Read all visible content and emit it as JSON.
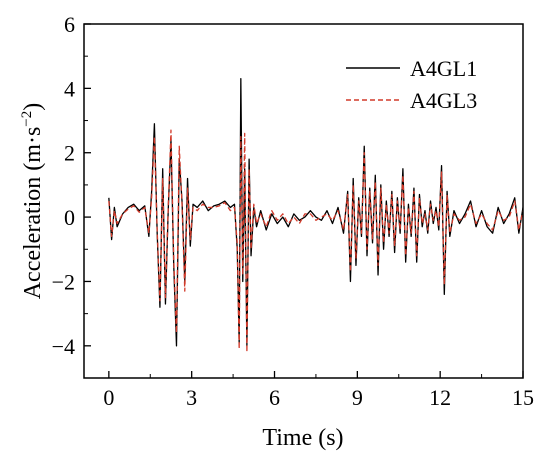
{
  "chart_data": {
    "type": "line",
    "xlabel": "Time (s)",
    "ylabel": "Acceleration (m·s",
    "ylabel_unit_exponent": "−2",
    "ylabel_close": ")",
    "xlim": [
      -0.9,
      15
    ],
    "ylim": [
      -5,
      6
    ],
    "x_ticks": [
      0,
      3,
      6,
      9,
      12,
      15
    ],
    "x_tick_labels": [
      "0",
      "3",
      "6",
      "9",
      "12",
      "15"
    ],
    "y_ticks": [
      -4,
      -2,
      0,
      2,
      4,
      6
    ],
    "y_tick_labels": [
      "−4",
      "−2",
      "0",
      "2",
      "4",
      "6"
    ],
    "grid": false,
    "legend_position": "top-right",
    "series": [
      {
        "name": "A4GL1",
        "color": "#000000",
        "dash": "solid",
        "x": [
          0.0,
          0.1,
          0.2,
          0.3,
          0.5,
          0.7,
          0.9,
          1.1,
          1.3,
          1.45,
          1.55,
          1.65,
          1.75,
          1.85,
          1.95,
          2.05,
          2.15,
          2.25,
          2.35,
          2.45,
          2.55,
          2.65,
          2.75,
          2.85,
          2.95,
          3.05,
          3.2,
          3.4,
          3.6,
          3.8,
          4.0,
          4.2,
          4.4,
          4.55,
          4.65,
          4.72,
          4.78,
          4.85,
          4.92,
          5.0,
          5.08,
          5.15,
          5.25,
          5.35,
          5.5,
          5.7,
          5.9,
          6.1,
          6.3,
          6.5,
          6.7,
          6.9,
          7.1,
          7.3,
          7.5,
          7.7,
          7.9,
          8.1,
          8.3,
          8.5,
          8.65,
          8.75,
          8.85,
          8.95,
          9.05,
          9.15,
          9.25,
          9.35,
          9.45,
          9.55,
          9.65,
          9.75,
          9.85,
          9.95,
          10.05,
          10.15,
          10.25,
          10.35,
          10.45,
          10.55,
          10.65,
          10.75,
          10.85,
          10.95,
          11.05,
          11.15,
          11.25,
          11.35,
          11.45,
          11.55,
          11.65,
          11.75,
          11.85,
          11.95,
          12.05,
          12.15,
          12.25,
          12.35,
          12.5,
          12.7,
          12.9,
          13.1,
          13.3,
          13.5,
          13.7,
          13.9,
          14.1,
          14.3,
          14.5,
          14.7,
          14.85,
          15.0
        ],
        "y": [
          0.6,
          -0.7,
          0.3,
          -0.3,
          0.1,
          0.3,
          0.4,
          0.2,
          0.35,
          -0.6,
          0.8,
          2.9,
          -0.5,
          -2.8,
          1.5,
          -2.7,
          0.2,
          2.4,
          -1.5,
          -4.0,
          1.8,
          0.5,
          -2.0,
          1.2,
          -0.9,
          0.4,
          0.3,
          0.5,
          0.2,
          0.35,
          0.4,
          0.5,
          0.3,
          0.4,
          -1.0,
          -3.9,
          4.3,
          -2.0,
          1.5,
          -4.0,
          1.8,
          -1.2,
          0.3,
          -0.3,
          0.2,
          -0.4,
          0.1,
          -0.2,
          0.0,
          -0.3,
          0.1,
          -0.1,
          0.0,
          0.2,
          0.0,
          -0.1,
          0.2,
          -0.2,
          0.3,
          -0.5,
          0.8,
          -2.0,
          1.2,
          -1.5,
          0.6,
          -0.6,
          2.2,
          -1.2,
          0.9,
          -0.8,
          1.3,
          -1.8,
          1.0,
          -1.0,
          0.5,
          -0.6,
          0.8,
          -1.1,
          0.6,
          -0.5,
          1.5,
          -1.4,
          0.4,
          -0.6,
          0.9,
          -1.4,
          0.7,
          -0.3,
          0.2,
          -0.5,
          0.5,
          -0.2,
          0.3,
          -0.4,
          1.6,
          -2.4,
          0.8,
          -0.6,
          0.2,
          -0.2,
          0.1,
          0.5,
          -0.3,
          0.2,
          -0.3,
          -0.5,
          0.3,
          -0.2,
          0.1,
          0.6,
          -0.5,
          0.3
        ],
        "linestyle": "solid"
      },
      {
        "name": "A4GL3",
        "color": "#d23a2a",
        "dash": "dashed",
        "x": [
          0.0,
          0.1,
          0.2,
          0.3,
          0.5,
          0.7,
          0.9,
          1.1,
          1.3,
          1.45,
          1.55,
          1.65,
          1.75,
          1.85,
          1.95,
          2.05,
          2.15,
          2.25,
          2.35,
          2.45,
          2.55,
          2.65,
          2.75,
          2.85,
          2.95,
          3.05,
          3.2,
          3.4,
          3.6,
          3.8,
          4.0,
          4.2,
          4.4,
          4.55,
          4.65,
          4.72,
          4.78,
          4.85,
          4.92,
          5.0,
          5.08,
          5.15,
          5.25,
          5.35,
          5.5,
          5.7,
          5.9,
          6.1,
          6.3,
          6.5,
          6.7,
          6.9,
          7.1,
          7.3,
          7.5,
          7.7,
          7.9,
          8.1,
          8.3,
          8.5,
          8.65,
          8.75,
          8.85,
          8.95,
          9.05,
          9.15,
          9.25,
          9.35,
          9.45,
          9.55,
          9.65,
          9.75,
          9.85,
          9.95,
          10.05,
          10.15,
          10.25,
          10.35,
          10.45,
          10.55,
          10.65,
          10.75,
          10.85,
          10.95,
          11.05,
          11.15,
          11.25,
          11.35,
          11.45,
          11.55,
          11.65,
          11.75,
          11.85,
          11.95,
          12.05,
          12.15,
          12.25,
          12.35,
          12.5,
          12.7,
          12.9,
          13.1,
          13.3,
          13.5,
          13.7,
          13.9,
          14.1,
          14.3,
          14.5,
          14.7,
          14.85,
          15.0
        ],
        "y": [
          0.5,
          -0.6,
          0.2,
          -0.2,
          0.1,
          0.25,
          0.35,
          0.15,
          0.3,
          -0.5,
          0.6,
          2.5,
          -0.4,
          -2.6,
          1.2,
          -2.5,
          0.3,
          2.7,
          -1.3,
          -3.6,
          2.2,
          0.4,
          -2.3,
          0.9,
          -0.7,
          0.3,
          0.2,
          0.4,
          0.3,
          0.3,
          0.35,
          0.45,
          0.2,
          0.3,
          -0.8,
          -4.1,
          2.5,
          -1.8,
          2.6,
          -4.2,
          1.5,
          -1.0,
          0.4,
          -0.2,
          0.1,
          -0.3,
          0.2,
          -0.1,
          0.1,
          -0.2,
          0.0,
          -0.2,
          0.1,
          0.1,
          -0.1,
          0.0,
          0.1,
          -0.1,
          0.2,
          -0.4,
          0.7,
          -1.7,
          1.0,
          -1.3,
          0.5,
          -0.5,
          2.0,
          -1.0,
          0.8,
          -0.7,
          1.1,
          -1.5,
          0.9,
          -0.8,
          0.4,
          -0.5,
          0.7,
          -0.9,
          0.5,
          -0.4,
          1.3,
          -1.2,
          0.3,
          -0.5,
          0.8,
          -1.2,
          0.6,
          -0.2,
          0.1,
          -0.4,
          0.4,
          -0.1,
          0.2,
          -0.3,
          1.4,
          -2.1,
          0.7,
          -0.5,
          0.1,
          -0.1,
          0.0,
          0.4,
          -0.2,
          0.1,
          -0.2,
          -0.4,
          0.2,
          -0.1,
          0.0,
          0.5,
          -0.4,
          0.2
        ],
        "linestyle": "dashed"
      }
    ]
  }
}
